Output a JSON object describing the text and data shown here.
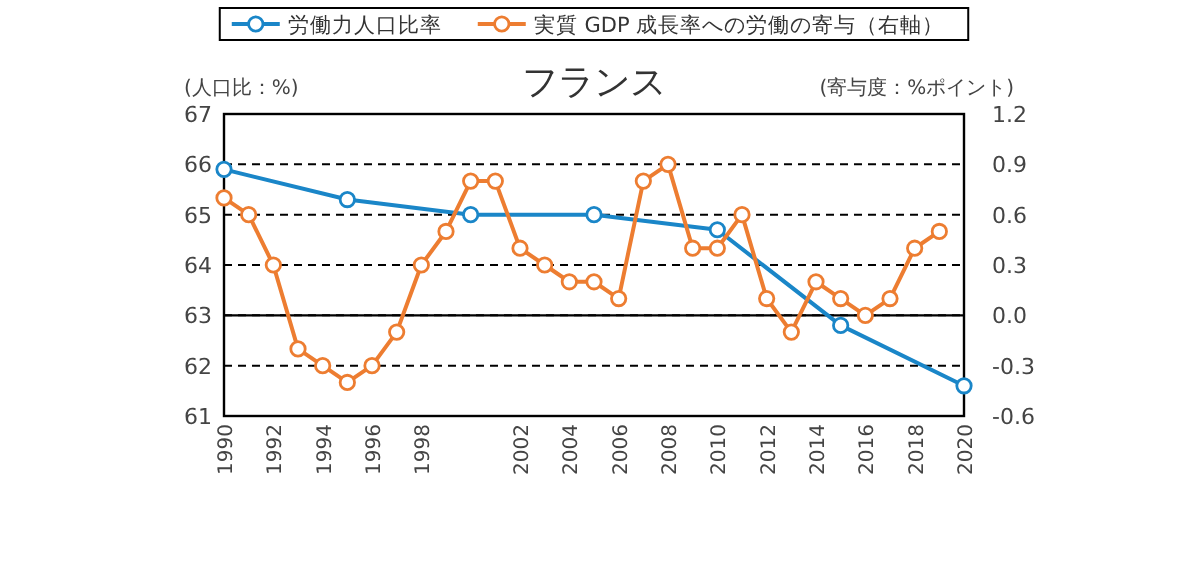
{
  "chart_data": {
    "type": "line",
    "title": "フランス",
    "ylabel": "(人口比：%)",
    "y2label": "(寄与度：%ポイント)",
    "xlim": [
      1990,
      2020
    ],
    "xticks": [
      1990,
      1992,
      1994,
      1996,
      1998,
      2002,
      2004,
      2006,
      2008,
      2010,
      2012,
      2014,
      2016,
      2018,
      2020
    ],
    "ylim": [
      61,
      67
    ],
    "yticks": [
      61,
      62,
      63,
      64,
      65,
      66,
      67
    ],
    "y2lim": [
      -0.6,
      1.2
    ],
    "y2ticks": [
      {
        "value": -0.6,
        "label": "-0.6"
      },
      {
        "value": -0.3,
        "label": "-0.3"
      },
      {
        "value": 0,
        "label": "0.0"
      },
      {
        "value": 0.3,
        "label": "0.3"
      },
      {
        "value": 0.6,
        "label": "0.6"
      },
      {
        "value": 0.9,
        "label": "0.9"
      },
      {
        "value": 1.2,
        "label": "1.2"
      }
    ],
    "grid": "y",
    "legend": "top",
    "marker": "circle",
    "line_style": "solid",
    "ref_lines": [
      {
        "axis": "y2",
        "value": 0,
        "color": "#000000",
        "line_style": "solid"
      }
    ],
    "series": [
      {
        "name": "労働力人口比率",
        "color": "#1a86c8",
        "x": [
          1990,
          1995,
          2000,
          2005,
          2010,
          2015,
          2020
        ],
        "values": [
          65.9,
          65.3,
          65.0,
          65.0,
          64.7,
          62.8,
          61.6
        ]
      },
      {
        "name": "実質 GDP 成長率への労働の寄与（右軸）",
        "color": "#ed7d31",
        "axis": "y2",
        "x": [
          1990,
          1991,
          1992,
          1993,
          1994,
          1995,
          1996,
          1997,
          1998,
          1999,
          2000,
          2001,
          2002,
          2003,
          2004,
          2005,
          2006,
          2007,
          2008,
          2009,
          2010,
          2011,
          2012,
          2013,
          2014,
          2015,
          2016,
          2017,
          2018,
          2019
        ],
        "values": [
          0.7,
          0.6,
          0.3,
          -0.2,
          -0.3,
          -0.4,
          -0.3,
          -0.1,
          0.3,
          0.5,
          0.8,
          0.8,
          0.4,
          0.3,
          0.2,
          0.2,
          0.1,
          0.8,
          0.9,
          0.4,
          0.4,
          0.6,
          0.1,
          -0.1,
          0.2,
          0.1,
          0.0,
          0.1,
          0.4,
          0.5
        ]
      }
    ]
  }
}
